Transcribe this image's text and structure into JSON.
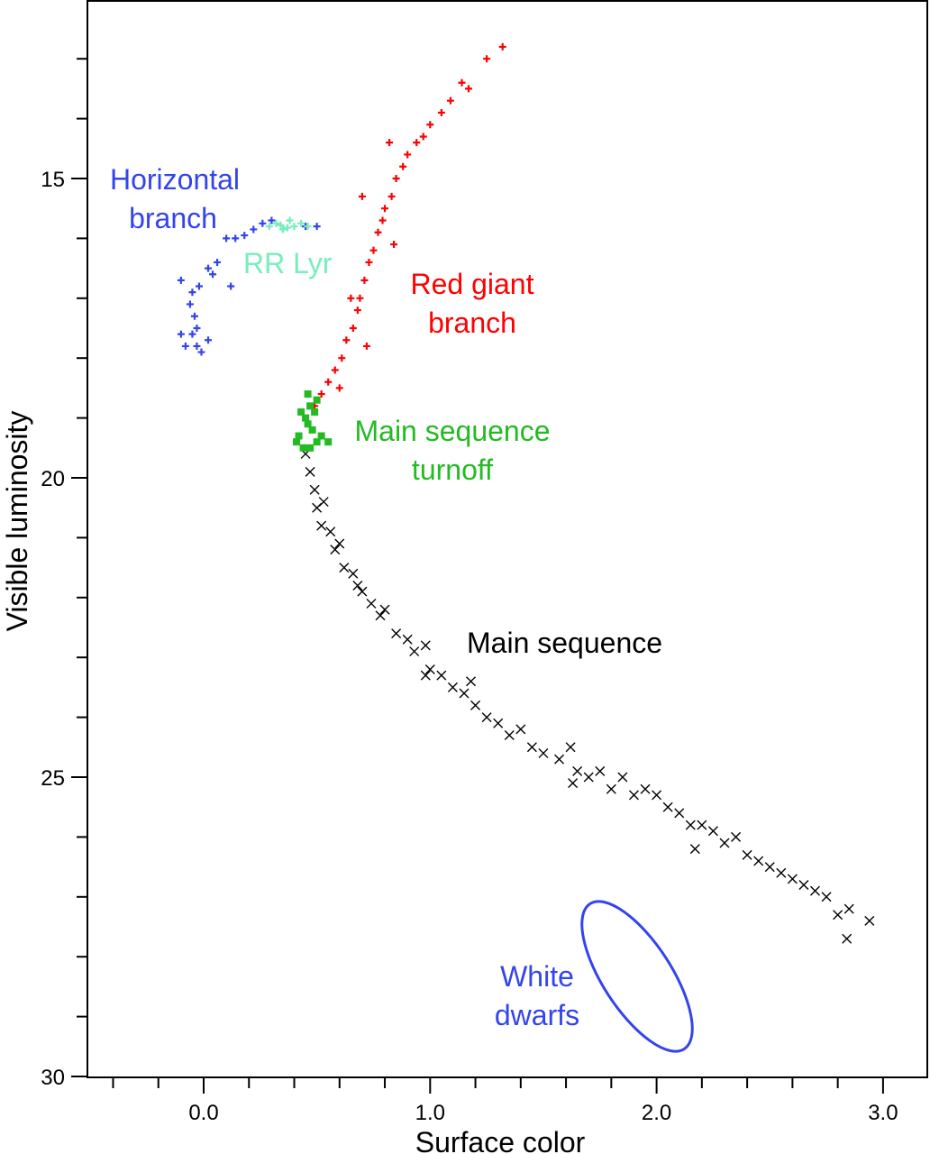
{
  "chart_data": {
    "type": "scatter",
    "title": "",
    "xlabel": "Surface color",
    "ylabel": "Visible luminosity",
    "xlim": [
      -0.51,
      3.2
    ],
    "ylim": [
      12.02,
      30
    ],
    "y_inverted": true,
    "grid": false,
    "x_ticks": [
      0.0,
      1.0,
      2.0,
      3.0
    ],
    "x_tick_labels": [
      "0.0",
      "1.0",
      "2.0",
      "3.0"
    ],
    "y_ticks": [
      15,
      20,
      25,
      30
    ],
    "y_tick_labels": [
      "15",
      "20",
      "25",
      "30"
    ],
    "series": [
      {
        "name": "Main sequence",
        "color": "#000000",
        "marker": "x",
        "points": [
          [
            0.45,
            19.6
          ],
          [
            0.47,
            19.9
          ],
          [
            0.49,
            20.2
          ],
          [
            0.5,
            20.5
          ],
          [
            0.53,
            20.4
          ],
          [
            0.52,
            20.8
          ],
          [
            0.56,
            20.9
          ],
          [
            0.58,
            21.2
          ],
          [
            0.6,
            21.1
          ],
          [
            0.62,
            21.5
          ],
          [
            0.66,
            21.6
          ],
          [
            0.68,
            21.8
          ],
          [
            0.7,
            21.9
          ],
          [
            0.74,
            22.1
          ],
          [
            0.78,
            22.3
          ],
          [
            0.8,
            22.2
          ],
          [
            0.85,
            22.6
          ],
          [
            0.9,
            22.7
          ],
          [
            0.93,
            22.9
          ],
          [
            0.98,
            22.8
          ],
          [
            1.0,
            23.2
          ],
          [
            1.05,
            23.3
          ],
          [
            1.1,
            23.5
          ],
          [
            1.15,
            23.6
          ],
          [
            1.2,
            23.8
          ],
          [
            1.25,
            24.0
          ],
          [
            1.3,
            24.1
          ],
          [
            1.35,
            24.3
          ],
          [
            1.4,
            24.2
          ],
          [
            1.45,
            24.5
          ],
          [
            1.5,
            24.6
          ],
          [
            1.57,
            24.7
          ],
          [
            1.62,
            24.5
          ],
          [
            1.65,
            24.9
          ],
          [
            1.7,
            25.0
          ],
          [
            1.75,
            24.9
          ],
          [
            1.8,
            25.2
          ],
          [
            1.85,
            25.0
          ],
          [
            1.9,
            25.3
          ],
          [
            1.95,
            25.2
          ],
          [
            2.0,
            25.3
          ],
          [
            2.05,
            25.5
          ],
          [
            2.1,
            25.6
          ],
          [
            2.15,
            25.8
          ],
          [
            2.2,
            25.8
          ],
          [
            2.25,
            25.9
          ],
          [
            2.3,
            26.1
          ],
          [
            2.35,
            26.0
          ],
          [
            2.4,
            26.3
          ],
          [
            2.45,
            26.4
          ],
          [
            2.5,
            26.5
          ],
          [
            2.55,
            26.6
          ],
          [
            2.6,
            26.7
          ],
          [
            2.65,
            26.8
          ],
          [
            2.7,
            26.9
          ],
          [
            2.75,
            27.0
          ],
          [
            2.8,
            27.3
          ],
          [
            2.85,
            27.2
          ],
          [
            2.84,
            27.7
          ],
          [
            2.94,
            27.4
          ],
          [
            0.98,
            23.3
          ],
          [
            1.18,
            23.4
          ],
          [
            1.63,
            25.1
          ],
          [
            2.17,
            26.2
          ]
        ]
      },
      {
        "name": "Red giant branch",
        "color": "#ff0000",
        "marker": "+",
        "points": [
          [
            0.49,
            18.8
          ],
          [
            0.52,
            18.6
          ],
          [
            0.55,
            18.4
          ],
          [
            0.58,
            18.2
          ],
          [
            0.61,
            18.0
          ],
          [
            0.63,
            17.7
          ],
          [
            0.66,
            17.5
          ],
          [
            0.68,
            17.2
          ],
          [
            0.69,
            17.0
          ],
          [
            0.71,
            16.7
          ],
          [
            0.73,
            16.4
          ],
          [
            0.75,
            16.2
          ],
          [
            0.77,
            15.9
          ],
          [
            0.79,
            15.7
          ],
          [
            0.8,
            15.5
          ],
          [
            0.83,
            15.3
          ],
          [
            0.85,
            15.0
          ],
          [
            0.88,
            14.8
          ],
          [
            0.9,
            14.6
          ],
          [
            0.94,
            14.4
          ],
          [
            0.97,
            14.3
          ],
          [
            1.0,
            14.1
          ],
          [
            1.05,
            13.9
          ],
          [
            1.09,
            13.7
          ],
          [
            1.14,
            13.4
          ],
          [
            1.17,
            13.5
          ],
          [
            1.25,
            13.0
          ],
          [
            1.32,
            12.8
          ],
          [
            0.72,
            17.8
          ],
          [
            0.65,
            17.0
          ],
          [
            0.84,
            16.1
          ],
          [
            0.7,
            15.3
          ],
          [
            0.82,
            14.4
          ],
          [
            0.6,
            18.5
          ]
        ]
      },
      {
        "name": "Main sequence turnoff",
        "color": "#22bb22",
        "marker": "square",
        "points": [
          [
            0.42,
            19.3
          ],
          [
            0.45,
            19.0
          ],
          [
            0.47,
            18.8
          ],
          [
            0.48,
            19.2
          ],
          [
            0.5,
            19.4
          ],
          [
            0.44,
            19.5
          ],
          [
            0.46,
            19.1
          ],
          [
            0.49,
            18.9
          ],
          [
            0.52,
            19.3
          ],
          [
            0.47,
            19.5
          ],
          [
            0.43,
            18.9
          ],
          [
            0.5,
            18.7
          ],
          [
            0.55,
            19.4
          ],
          [
            0.46,
            18.6
          ],
          [
            0.41,
            19.4
          ]
        ]
      },
      {
        "name": "Horizontal branch",
        "color": "#3344ee",
        "marker": "+",
        "points": [
          [
            0.1,
            16.0
          ],
          [
            0.14,
            16.0
          ],
          [
            0.18,
            15.95
          ],
          [
            0.22,
            15.85
          ],
          [
            0.26,
            15.75
          ],
          [
            0.3,
            15.7
          ],
          [
            0.45,
            15.8
          ],
          [
            0.5,
            15.8
          ],
          [
            0.06,
            16.4
          ],
          [
            0.04,
            16.6
          ],
          [
            0.02,
            16.5
          ],
          [
            -0.02,
            16.8
          ],
          [
            -0.05,
            16.9
          ],
          [
            -0.06,
            17.1
          ],
          [
            -0.04,
            17.3
          ],
          [
            -0.03,
            17.5
          ],
          [
            -0.05,
            17.6
          ],
          [
            -0.1,
            17.6
          ],
          [
            -0.08,
            17.8
          ],
          [
            -0.03,
            17.8
          ],
          [
            -0.01,
            17.9
          ],
          [
            0.02,
            17.7
          ],
          [
            -0.1,
            16.7
          ],
          [
            0.12,
            16.8
          ]
        ]
      },
      {
        "name": "RR Lyr",
        "color": "#77eebb",
        "marker": "+",
        "points": [
          [
            0.29,
            15.8
          ],
          [
            0.32,
            15.75
          ],
          [
            0.35,
            15.85
          ],
          [
            0.38,
            15.7
          ],
          [
            0.4,
            15.8
          ],
          [
            0.43,
            15.75
          ],
          [
            0.46,
            15.8
          ],
          [
            0.34,
            15.78
          ],
          [
            0.37,
            15.82
          ]
        ]
      }
    ],
    "annotations": [
      {
        "text": [
          "Horizontal",
          "branch"
        ],
        "color": "#3344ee"
      },
      {
        "text": [
          "RR Lyr"
        ],
        "color": "#77eebb"
      },
      {
        "text": [
          "Red giant",
          "branch"
        ],
        "color": "#ff0000"
      },
      {
        "text": [
          "Main sequence",
          "turnoff"
        ],
        "color": "#22bb22"
      },
      {
        "text": [
          "Main sequence"
        ],
        "color": "#000000"
      },
      {
        "text": [
          "White",
          "dwarfs"
        ],
        "color": "#3344ee"
      }
    ]
  }
}
